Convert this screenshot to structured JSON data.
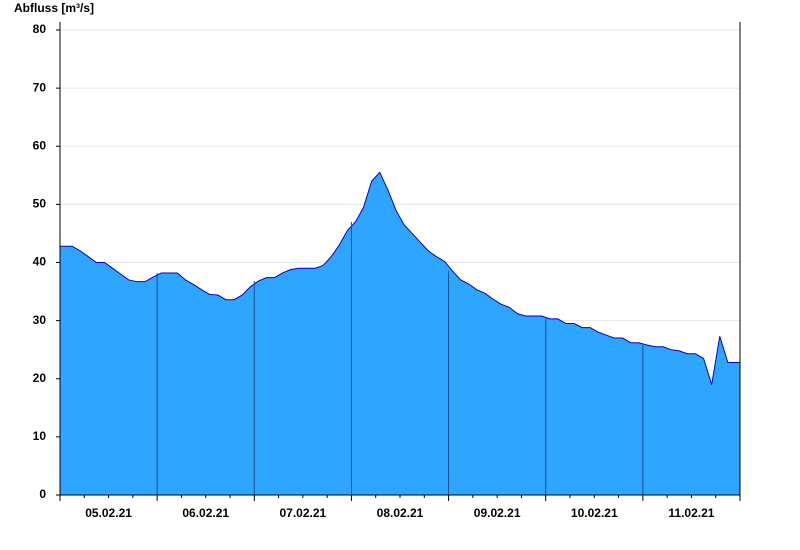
{
  "chart_data": {
    "type": "area",
    "title": "Abfluss [m³/s]",
    "categories": [
      null,
      null,
      null,
      null,
      null,
      null,
      "05.02.21",
      null,
      null,
      null,
      null,
      null,
      null,
      null,
      null,
      null,
      null,
      null,
      "06.02.21",
      null,
      null,
      null,
      null,
      null,
      null,
      null,
      null,
      null,
      null,
      null,
      "07.02.21",
      null,
      null,
      null,
      null,
      null,
      null,
      null,
      null,
      null,
      null,
      null,
      "08.02.21",
      null,
      null,
      null,
      null,
      null,
      null,
      null,
      null,
      null,
      null,
      null,
      "09.02.21",
      null,
      null,
      null,
      null,
      null,
      null,
      null,
      null,
      null,
      null,
      null,
      "10.02.21",
      null,
      null,
      null,
      null,
      null,
      null,
      null,
      null,
      null,
      null,
      null,
      "11.02.21",
      null,
      null,
      null,
      null,
      null
    ],
    "values": [
      42.8,
      42.8,
      42,
      41,
      40,
      40,
      39,
      38,
      37,
      36.7,
      36.7,
      37.5,
      38.2,
      38.2,
      38.2,
      37,
      36.2,
      35.3,
      34.5,
      34.4,
      33.6,
      33.6,
      34.4,
      35.8,
      36.8,
      37.4,
      37.4,
      38.2,
      38.8,
      39,
      39,
      39,
      39.5,
      41,
      43,
      45.5,
      47,
      49.5,
      54,
      55.5,
      52.5,
      49,
      46.5,
      45,
      43.5,
      42,
      41,
      40.2,
      38.5,
      37,
      36.3,
      35.3,
      34.7,
      33.7,
      32.8,
      32.3,
      31.2,
      30.8,
      30.8,
      30.8,
      30.3,
      30.3,
      29.5,
      29.5,
      28.8,
      28.8,
      28,
      27.5,
      27,
      27,
      26.2,
      26.2,
      25.8,
      25.5,
      25.5,
      25,
      24.8,
      24.3,
      24.3,
      23.5,
      19,
      27.3,
      22.8,
      22.8
    ],
    "color": "#2ea6ff",
    "line_color": "#0000cc",
    "ylim": [
      0,
      80
    ],
    "yticks": [
      0,
      10,
      20,
      30,
      40,
      50,
      60,
      70,
      80
    ],
    "grid": true
  }
}
